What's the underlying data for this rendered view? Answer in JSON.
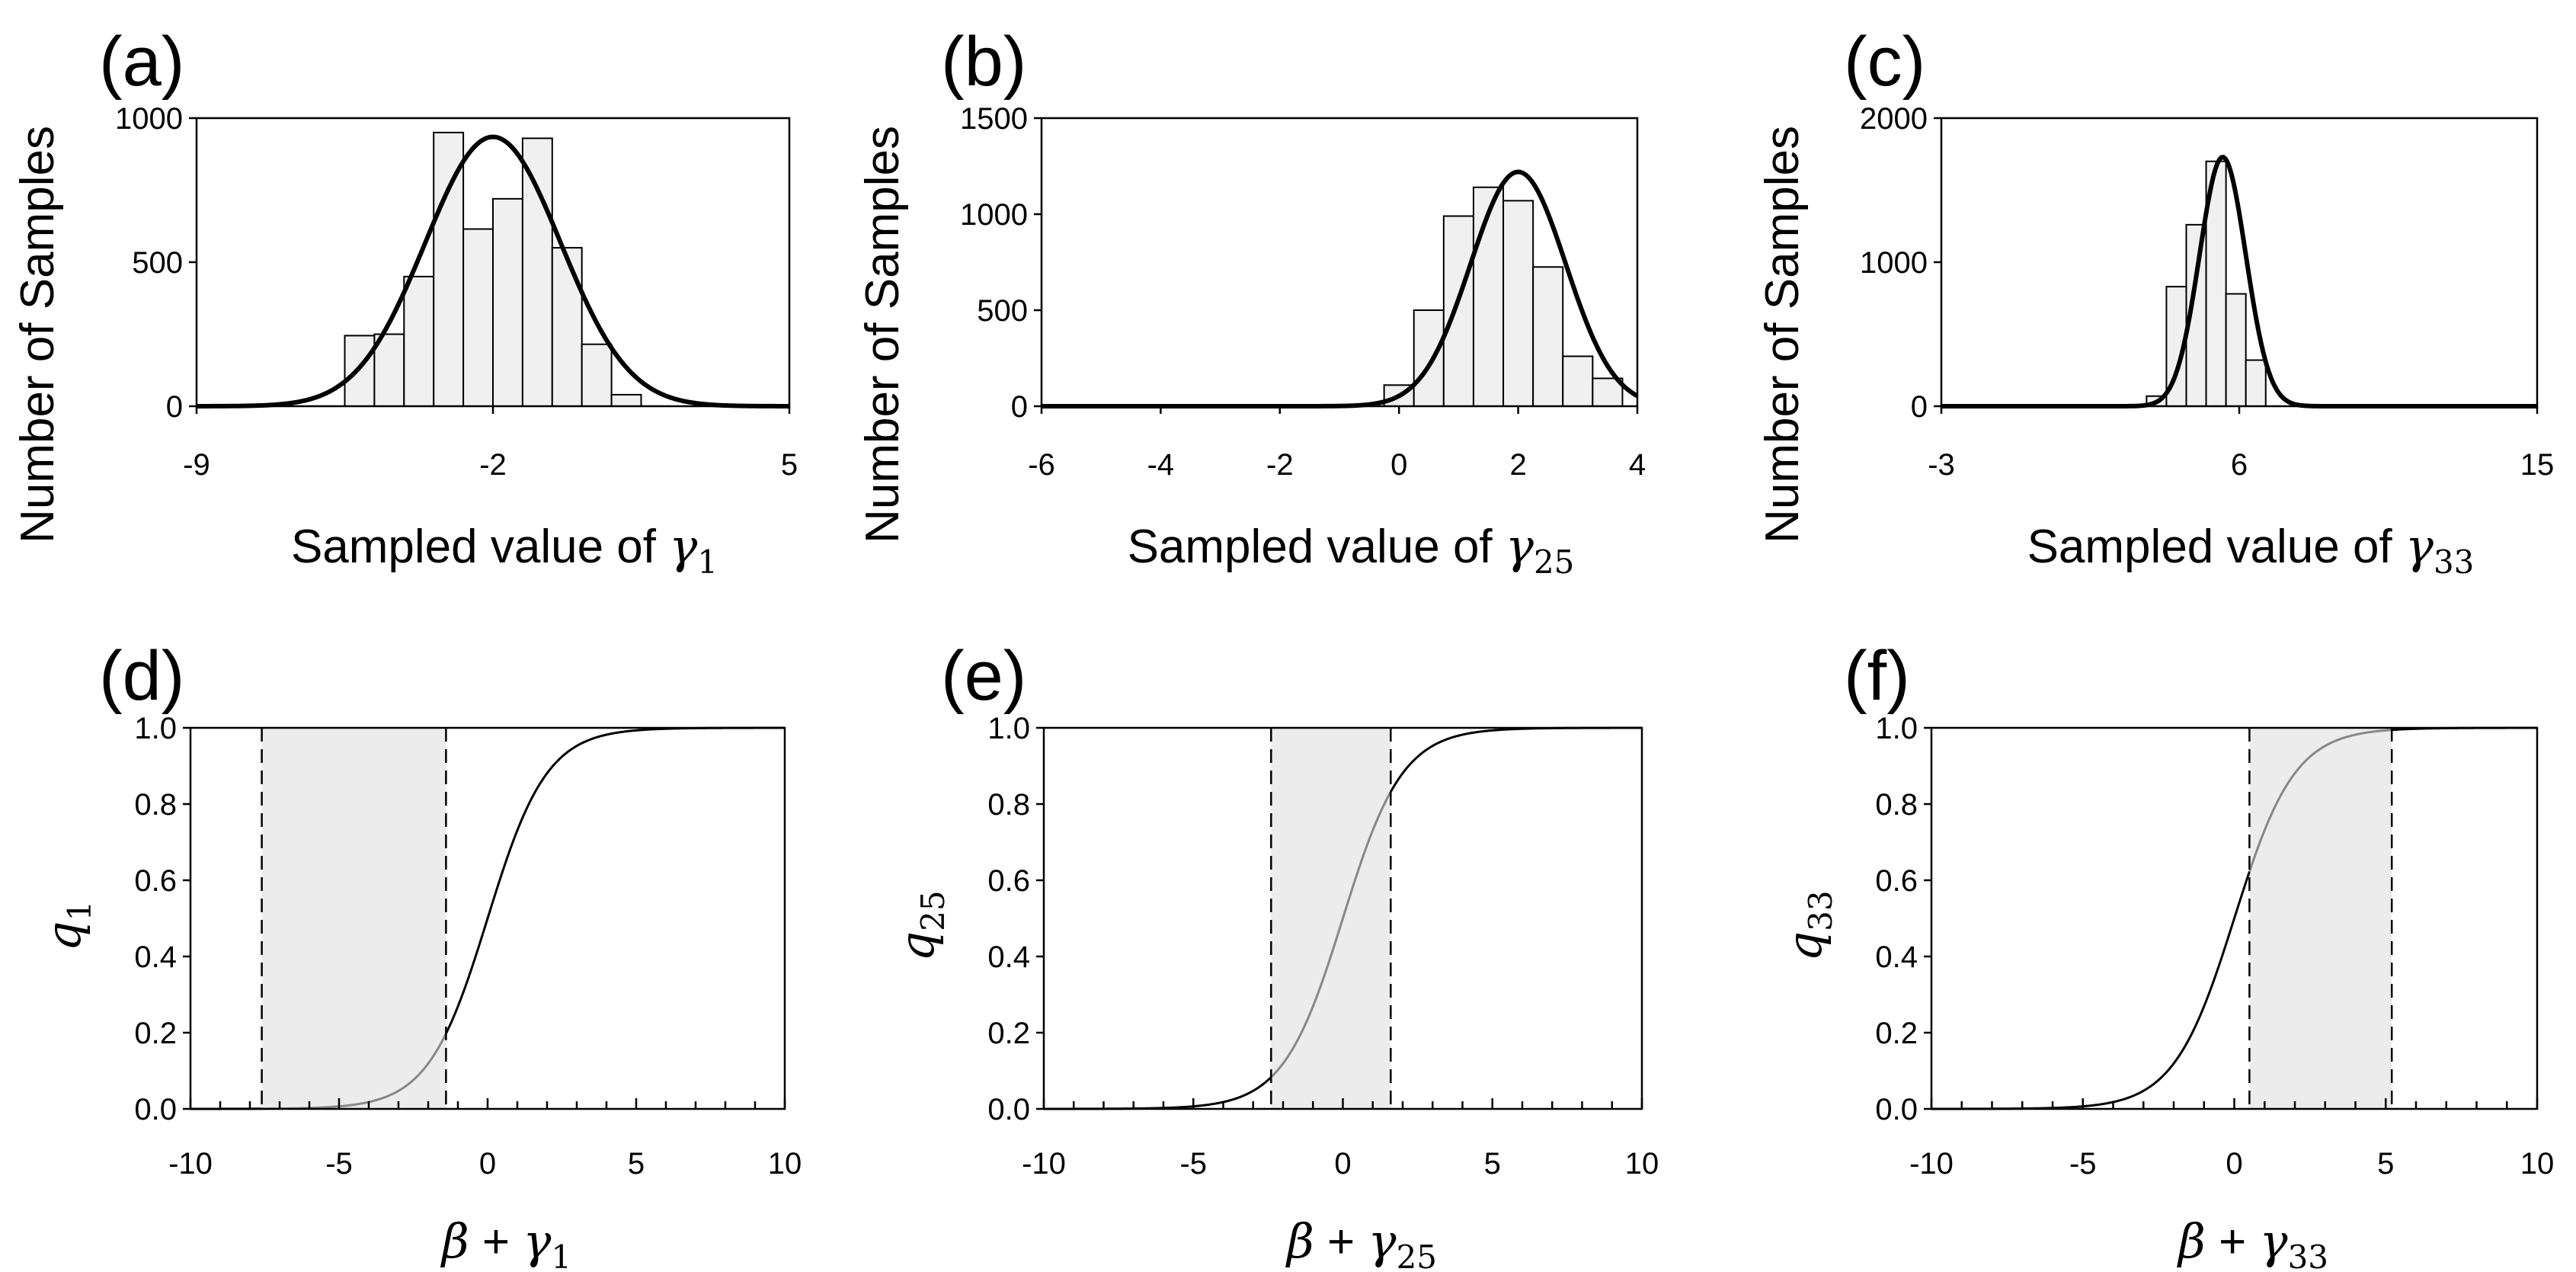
{
  "chart_data": [
    {
      "id": "a",
      "type": "bar",
      "panel_label": "(a)",
      "ylabel": "Number of Samples",
      "xlabel_text": "Sampled value of ",
      "xlabel_symbol": "γ",
      "xlabel_sub": "1",
      "xlim": [
        -9,
        5
      ],
      "ylim": [
        0,
        1000
      ],
      "xticks": [
        -9,
        -2,
        5
      ],
      "yticks": [
        0,
        500,
        1000
      ],
      "xtick_labels": [
        "-9",
        "-2",
        "5"
      ],
      "ytick_labels": [
        "0",
        "500",
        "1000"
      ],
      "bins": [
        {
          "x0": -5.5,
          "x1": -4.8,
          "value": 245
        },
        {
          "x0": -4.8,
          "x1": -4.1,
          "value": 250
        },
        {
          "x0": -4.1,
          "x1": -3.4,
          "value": 450
        },
        {
          "x0": -3.4,
          "x1": -2.7,
          "value": 950
        },
        {
          "x0": -2.7,
          "x1": -2.0,
          "value": 615
        },
        {
          "x0": -2.0,
          "x1": -1.3,
          "value": 720
        },
        {
          "x0": -1.3,
          "x1": -0.6,
          "value": 930
        },
        {
          "x0": -0.6,
          "x1": 0.1,
          "value": 550
        },
        {
          "x0": 0.1,
          "x1": 0.8,
          "value": 215
        },
        {
          "x0": 0.8,
          "x1": 1.5,
          "value": 40
        }
      ],
      "fit": {
        "mean": -2.0,
        "sd": 1.6,
        "peak": 935
      }
    },
    {
      "id": "b",
      "type": "bar",
      "panel_label": "(b)",
      "ylabel": "Number of Samples",
      "xlabel_text": "Sampled value of ",
      "xlabel_symbol": "γ",
      "xlabel_sub": "25",
      "xlim": [
        -6,
        4
      ],
      "ylim": [
        0,
        1500
      ],
      "xticks": [
        -6,
        -4,
        -2,
        0,
        2,
        4
      ],
      "yticks": [
        0,
        500,
        1000,
        1500
      ],
      "xtick_labels": [
        "-6",
        "-4",
        "-2",
        "0",
        "2",
        "4"
      ],
      "ytick_labels": [
        "0",
        "500",
        "1000",
        "1500"
      ],
      "bins": [
        {
          "x0": -0.25,
          "x1": 0.25,
          "value": 110
        },
        {
          "x0": 0.25,
          "x1": 0.75,
          "value": 500
        },
        {
          "x0": 0.75,
          "x1": 1.25,
          "value": 990
        },
        {
          "x0": 1.25,
          "x1": 1.75,
          "value": 1140
        },
        {
          "x0": 1.75,
          "x1": 2.25,
          "value": 1070
        },
        {
          "x0": 2.25,
          "x1": 2.75,
          "value": 725
        },
        {
          "x0": 2.75,
          "x1": 3.25,
          "value": 260
        },
        {
          "x0": 3.25,
          "x1": 3.75,
          "value": 145
        }
      ],
      "fit": {
        "mean": 2.0,
        "sd": 0.8,
        "peak": 1220
      }
    },
    {
      "id": "c",
      "type": "bar",
      "panel_label": "(c)",
      "ylabel": "Number of Samples",
      "xlabel_text": "Sampled value of ",
      "xlabel_symbol": "γ",
      "xlabel_sub": "33",
      "xlim": [
        -3,
        15
      ],
      "ylim": [
        0,
        2000
      ],
      "xticks": [
        -3,
        6,
        15
      ],
      "yticks": [
        0,
        1000,
        2000
      ],
      "xtick_labels": [
        "-3",
        "6",
        "15"
      ],
      "ytick_labels": [
        "0",
        "1000",
        "2000"
      ],
      "bins": [
        {
          "x0": 3.2,
          "x1": 3.8,
          "value": 70
        },
        {
          "x0": 3.8,
          "x1": 4.4,
          "value": 830
        },
        {
          "x0": 4.4,
          "x1": 5.0,
          "value": 1260
        },
        {
          "x0": 5.0,
          "x1": 5.6,
          "value": 1700
        },
        {
          "x0": 5.6,
          "x1": 6.2,
          "value": 780
        },
        {
          "x0": 6.2,
          "x1": 6.8,
          "value": 320
        }
      ],
      "fit": {
        "mean": 5.5,
        "sd": 0.7,
        "peak": 1730
      }
    },
    {
      "id": "d",
      "type": "line",
      "panel_label": "(d)",
      "ylabel_symbol": "q",
      "ylabel_sub": "1",
      "xlabel_symbol1": "β",
      "xlabel_op": " + ",
      "xlabel_symbol2": "γ",
      "xlabel_sub": "1",
      "xlim": [
        -10,
        10
      ],
      "ylim": [
        0,
        1
      ],
      "xticks": [
        -10,
        -5,
        0,
        5,
        10
      ],
      "yticks": [
        0,
        0.2,
        0.4,
        0.6,
        0.8,
        1.0
      ],
      "xtick_labels": [
        "-10",
        "-5",
        "0",
        "5",
        "10"
      ],
      "ytick_labels": [
        "0.0",
        "0.2",
        "0.4",
        "0.6",
        "0.8",
        "1.0"
      ],
      "curve": "logistic",
      "band": [
        -7.6,
        -1.4
      ]
    },
    {
      "id": "e",
      "type": "line",
      "panel_label": "(e)",
      "ylabel_symbol": "q",
      "ylabel_sub": "25",
      "xlabel_symbol1": "β",
      "xlabel_op": " + ",
      "xlabel_symbol2": "γ",
      "xlabel_sub": "25",
      "xlim": [
        -10,
        10
      ],
      "ylim": [
        0,
        1
      ],
      "xticks": [
        -10,
        -5,
        0,
        5,
        10
      ],
      "yticks": [
        0,
        0.2,
        0.4,
        0.6,
        0.8,
        1.0
      ],
      "xtick_labels": [
        "-10",
        "-5",
        "0",
        "5",
        "10"
      ],
      "ytick_labels": [
        "0.0",
        "0.2",
        "0.4",
        "0.6",
        "0.8",
        "1.0"
      ],
      "curve": "logistic",
      "band": [
        -2.4,
        1.6
      ]
    },
    {
      "id": "f",
      "type": "line",
      "panel_label": "(f)",
      "ylabel_symbol": "q",
      "ylabel_sub": "33",
      "xlabel_symbol1": "β",
      "xlabel_op": " + ",
      "xlabel_symbol2": "γ",
      "xlabel_sub": "33",
      "xlim": [
        -10,
        10
      ],
      "ylim": [
        0,
        1
      ],
      "xticks": [
        -10,
        -5,
        0,
        5,
        10
      ],
      "yticks": [
        0,
        0.2,
        0.4,
        0.6,
        0.8,
        1.0
      ],
      "xtick_labels": [
        "-10",
        "-5",
        "0",
        "5",
        "10"
      ],
      "ytick_labels": [
        "0.0",
        "0.2",
        "0.4",
        "0.6",
        "0.8",
        "1.0"
      ],
      "curve": "logistic",
      "band": [
        0.5,
        5.2
      ]
    }
  ]
}
